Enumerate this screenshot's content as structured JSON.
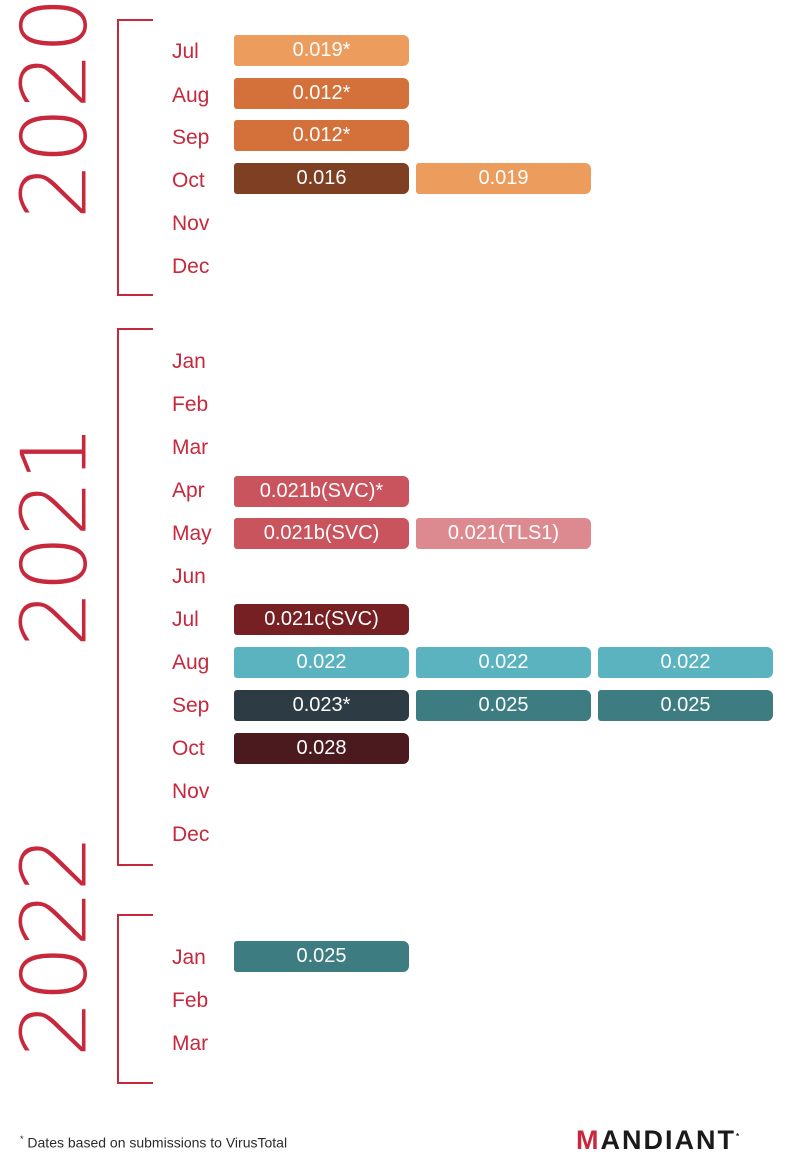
{
  "years": [
    {
      "year": "2020",
      "months": [
        "Jul",
        "Aug",
        "Sep",
        "Oct",
        "Nov",
        "Dec"
      ]
    },
    {
      "year": "2021",
      "months": [
        "Jan",
        "Feb",
        "Mar",
        "Apr",
        "May",
        "Jun",
        "Jul",
        "Aug",
        "Sep",
        "Oct",
        "Nov",
        "Dec"
      ]
    },
    {
      "year": "2022",
      "months": [
        "Jan",
        "Feb",
        "Mar"
      ]
    }
  ],
  "bars": [
    {
      "label": "0.019*",
      "color": "#ec9c5c"
    },
    {
      "label": "0.012*",
      "color": "#d4703a"
    },
    {
      "label": "0.012*",
      "color": "#d4703a"
    },
    {
      "label": "0.016",
      "color": "#7e3f22"
    },
    {
      "label": "0.019",
      "color": "#ec9c5c"
    },
    {
      "label": "0.021b(SVC)*",
      "color": "#c9545e"
    },
    {
      "label": "0.021b(SVC)",
      "color": "#c9545e"
    },
    {
      "label": "0.021(TLS1)",
      "color": "#dc8a8f"
    },
    {
      "label": "0.021c(SVC)",
      "color": "#762024"
    },
    {
      "label": "0.022",
      "color": "#5bb3c0"
    },
    {
      "label": "0.022",
      "color": "#5bb3c0"
    },
    {
      "label": "0.022",
      "color": "#5bb3c0"
    },
    {
      "label": "0.023*",
      "color": "#2d3c44"
    },
    {
      "label": "0.025",
      "color": "#3d7d82"
    },
    {
      "label": "0.025",
      "color": "#3d7d82"
    },
    {
      "label": "0.028",
      "color": "#4a1a1e"
    },
    {
      "label": "0.025",
      "color": "#3d7d82"
    }
  ],
  "footnote": {
    "mark": "*",
    "text": " Dates based on submissions to VirusTotal"
  },
  "logo": {
    "first": "M",
    "rest": "ANDIANT",
    "mark": "*"
  }
}
